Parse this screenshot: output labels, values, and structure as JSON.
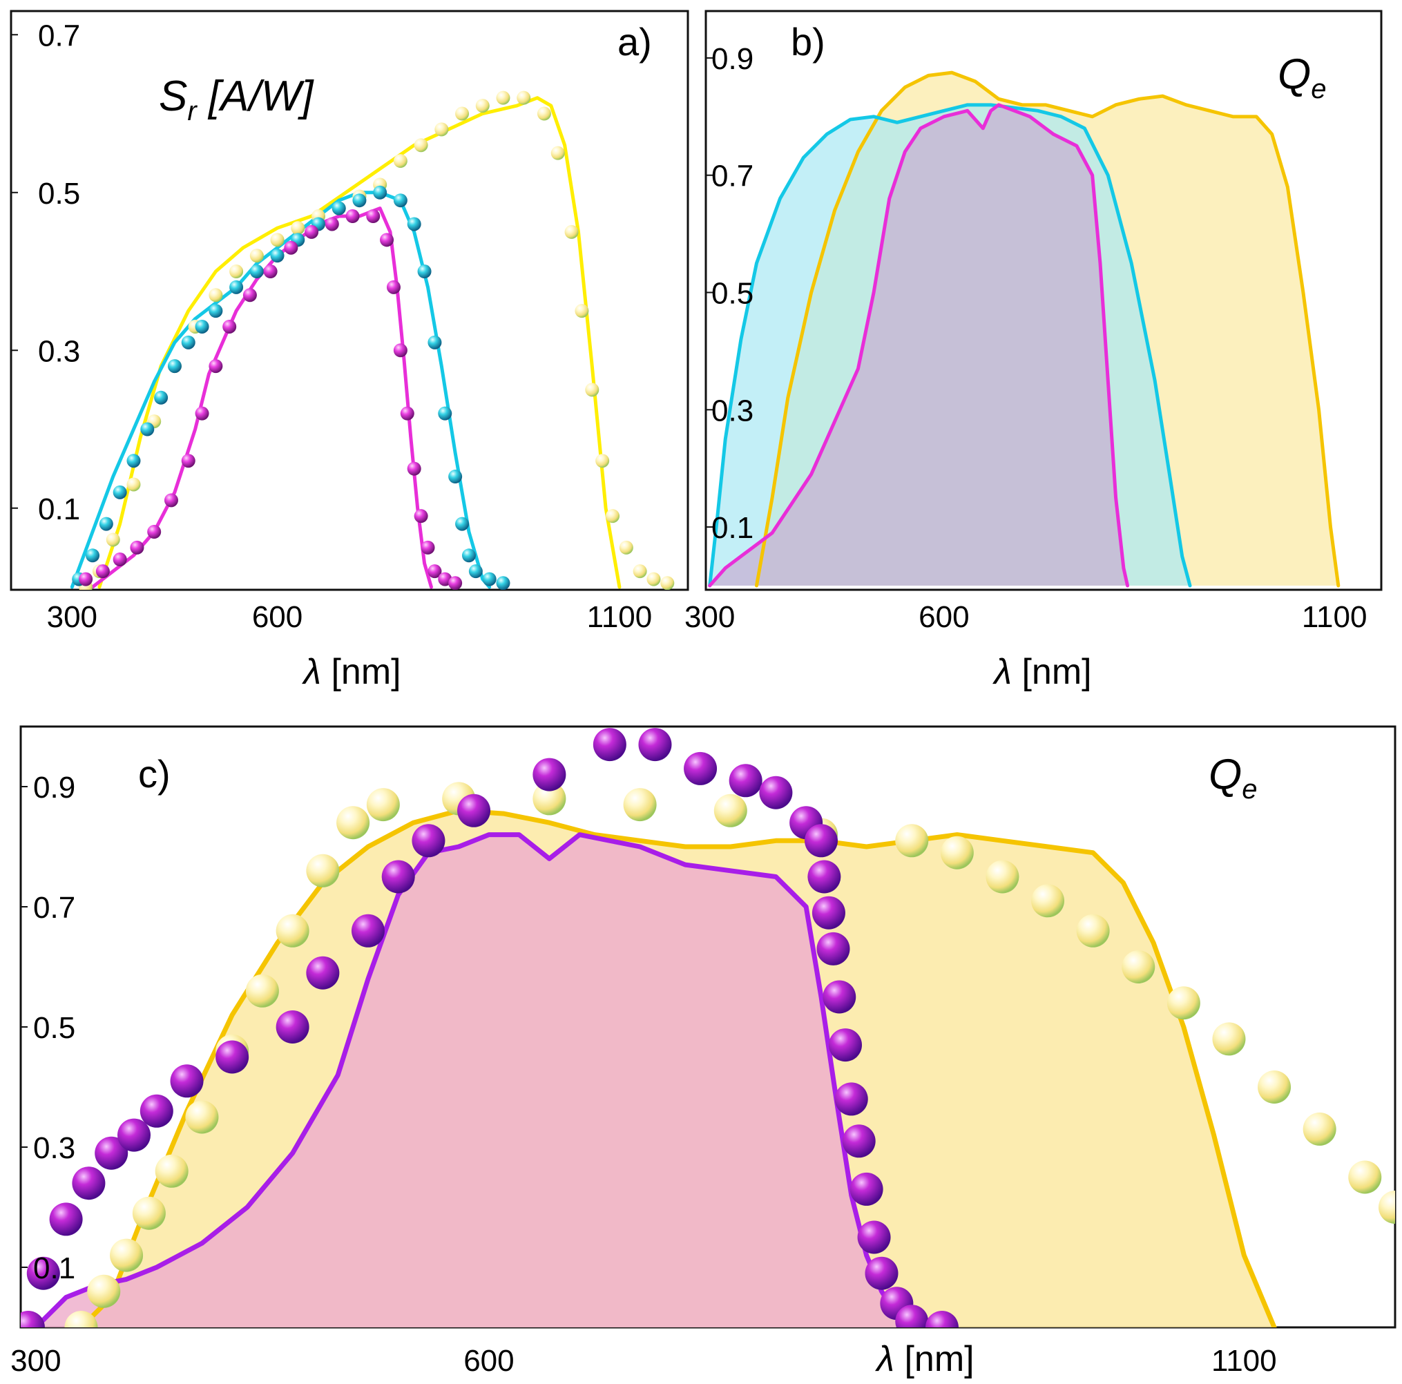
{
  "colors": {
    "yellow": "#ffee00",
    "gold": "#f5c400",
    "cyan": "#14c8e6",
    "magenta": "#e82ed8",
    "purple": "#a81ee8",
    "fill_gold": "#fbe9a2",
    "fill_cyan": "#a9e8f3",
    "fill_green": "#b4e6c6",
    "fill_purple": "#c8aed2",
    "fill_pink": "#eeb0cc"
  },
  "chart_data": [
    {
      "id": "a",
      "type": "line",
      "panel_tag": "a)",
      "title_main": "S",
      "title_sub": "r",
      "title_rest": " [A/W]",
      "xlabel_sym": "λ",
      "xlabel_unit": " [nm]",
      "xlim": [
        225,
        1200
      ],
      "ylim": [
        0,
        0.73
      ],
      "x_ticks": [
        300,
        600,
        1100
      ],
      "x_tick_labels": [
        "300",
        "600",
        "1100"
      ],
      "y_ticks": [
        0.1,
        0.3,
        0.5,
        0.7
      ],
      "y_tick_labels": [
        "0.1",
        "0.3",
        "0.5",
        "0.7"
      ],
      "minor_y_ticks": [
        0.1,
        0.3,
        0.5,
        0.7
      ],
      "series": [
        {
          "name": "yellow",
          "kind": "line",
          "color": "yellow",
          "x": [
            340,
            370,
            400,
            430,
            470,
            510,
            550,
            600,
            650,
            700,
            750,
            800,
            850,
            900,
            950,
            980,
            1000,
            1020,
            1040,
            1060,
            1080,
            1100
          ],
          "y": [
            0.0,
            0.08,
            0.19,
            0.28,
            0.35,
            0.4,
            0.43,
            0.455,
            0.47,
            0.5,
            0.53,
            0.56,
            0.58,
            0.6,
            0.61,
            0.62,
            0.61,
            0.56,
            0.45,
            0.28,
            0.1,
            0.0
          ]
        },
        {
          "name": "yellow-points",
          "kind": "points",
          "color": "yellow",
          "x": [
            320,
            340,
            360,
            390,
            420,
            450,
            480,
            510,
            540,
            570,
            600,
            630,
            660,
            690,
            720,
            750,
            780,
            810,
            840,
            870,
            900,
            930,
            960,
            990,
            1010,
            1030,
            1045,
            1060,
            1075,
            1090,
            1110,
            1130,
            1150,
            1170
          ],
          "y": [
            0.0,
            0.02,
            0.06,
            0.13,
            0.21,
            0.28,
            0.33,
            0.37,
            0.4,
            0.42,
            0.44,
            0.455,
            0.47,
            0.48,
            0.495,
            0.51,
            0.54,
            0.56,
            0.58,
            0.6,
            0.61,
            0.62,
            0.62,
            0.6,
            0.55,
            0.45,
            0.35,
            0.25,
            0.16,
            0.09,
            0.05,
            0.02,
            0.01,
            0.005
          ]
        },
        {
          "name": "cyan",
          "kind": "line",
          "color": "cyan",
          "x": [
            300,
            330,
            360,
            390,
            420,
            450,
            480,
            510,
            540,
            570,
            600,
            630,
            660,
            690,
            720,
            750,
            780,
            800,
            820,
            840,
            860,
            880,
            900,
            910
          ],
          "y": [
            0.0,
            0.07,
            0.14,
            0.2,
            0.26,
            0.31,
            0.34,
            0.36,
            0.38,
            0.41,
            0.43,
            0.45,
            0.47,
            0.49,
            0.5,
            0.5,
            0.49,
            0.45,
            0.38,
            0.28,
            0.17,
            0.07,
            0.01,
            0.0
          ]
        },
        {
          "name": "cyan-points",
          "kind": "points",
          "color": "cyan",
          "x": [
            310,
            330,
            350,
            370,
            390,
            410,
            430,
            450,
            470,
            490,
            510,
            540,
            570,
            600,
            630,
            660,
            690,
            720,
            750,
            780,
            800,
            815,
            830,
            845,
            860,
            870,
            880,
            890,
            910,
            930
          ],
          "y": [
            0.01,
            0.04,
            0.08,
            0.12,
            0.16,
            0.2,
            0.24,
            0.28,
            0.31,
            0.33,
            0.35,
            0.38,
            0.4,
            0.42,
            0.44,
            0.46,
            0.48,
            0.49,
            0.5,
            0.49,
            0.46,
            0.4,
            0.31,
            0.22,
            0.14,
            0.08,
            0.04,
            0.02,
            0.01,
            0.005
          ]
        },
        {
          "name": "magenta",
          "kind": "line",
          "color": "magenta",
          "x": [
            330,
            360,
            390,
            420,
            450,
            480,
            500,
            520,
            540,
            570,
            600,
            630,
            660,
            690,
            720,
            750,
            765,
            775,
            785,
            795,
            805,
            815,
            825
          ],
          "y": [
            0.0,
            0.02,
            0.04,
            0.07,
            0.12,
            0.2,
            0.27,
            0.31,
            0.35,
            0.39,
            0.42,
            0.44,
            0.46,
            0.47,
            0.47,
            0.48,
            0.45,
            0.38,
            0.29,
            0.19,
            0.1,
            0.03,
            0.0
          ]
        },
        {
          "name": "magenta-points",
          "kind": "points",
          "color": "magenta",
          "x": [
            320,
            345,
            370,
            395,
            420,
            445,
            470,
            490,
            510,
            530,
            560,
            590,
            620,
            650,
            680,
            710,
            740,
            760,
            770,
            780,
            790,
            800,
            810,
            820,
            830,
            845,
            860
          ],
          "y": [
            0.01,
            0.02,
            0.035,
            0.05,
            0.07,
            0.11,
            0.16,
            0.22,
            0.28,
            0.33,
            0.37,
            0.4,
            0.43,
            0.45,
            0.46,
            0.47,
            0.47,
            0.44,
            0.38,
            0.3,
            0.22,
            0.15,
            0.09,
            0.05,
            0.02,
            0.01,
            0.005
          ]
        }
      ]
    },
    {
      "id": "b",
      "type": "area",
      "panel_tag": "b)",
      "title_main": "Q",
      "title_sub": "e",
      "xlabel_sym": "λ",
      "xlabel_unit": " [nm]",
      "xlim": [
        295,
        1160
      ],
      "ylim": [
        0,
        0.98
      ],
      "x_ticks": [
        300,
        600,
        1100
      ],
      "x_tick_labels": [
        "300",
        "600",
        "1100"
      ],
      "y_ticks": [
        0.1,
        0.3,
        0.5,
        0.7,
        0.9
      ],
      "y_tick_labels": [
        "0.1",
        "0.3",
        "0.5",
        "0.7",
        "0.9"
      ],
      "series": [
        {
          "name": "gold",
          "color": "gold",
          "fill": "fill_gold",
          "x": [
            360,
            380,
            400,
            430,
            460,
            490,
            520,
            550,
            580,
            610,
            640,
            670,
            700,
            730,
            760,
            790,
            820,
            850,
            880,
            910,
            940,
            970,
            1000,
            1020,
            1040,
            1060,
            1080,
            1095,
            1105
          ],
          "y": [
            0.0,
            0.15,
            0.32,
            0.5,
            0.64,
            0.74,
            0.81,
            0.85,
            0.87,
            0.875,
            0.86,
            0.83,
            0.82,
            0.82,
            0.81,
            0.8,
            0.82,
            0.83,
            0.835,
            0.82,
            0.81,
            0.8,
            0.8,
            0.77,
            0.68,
            0.5,
            0.3,
            0.1,
            0.0
          ]
        },
        {
          "name": "cyan",
          "color": "cyan",
          "fill": "fill_cyan",
          "x": [
            300,
            310,
            320,
            340,
            360,
            390,
            420,
            450,
            480,
            510,
            540,
            570,
            600,
            630,
            660,
            690,
            720,
            750,
            780,
            810,
            840,
            870,
            890,
            905,
            915
          ],
          "y": [
            0.0,
            0.12,
            0.25,
            0.42,
            0.55,
            0.66,
            0.73,
            0.77,
            0.795,
            0.8,
            0.79,
            0.8,
            0.81,
            0.82,
            0.82,
            0.815,
            0.81,
            0.8,
            0.78,
            0.7,
            0.55,
            0.35,
            0.18,
            0.05,
            0.0
          ]
        },
        {
          "name": "magenta",
          "color": "magenta",
          "fill": "fill_purple",
          "x": [
            300,
            320,
            340,
            360,
            380,
            400,
            430,
            460,
            490,
            510,
            530,
            550,
            570,
            600,
            630,
            650,
            660,
            670,
            690,
            710,
            740,
            770,
            790,
            800,
            810,
            820,
            830,
            835
          ],
          "y": [
            0.0,
            0.03,
            0.05,
            0.07,
            0.09,
            0.13,
            0.19,
            0.28,
            0.37,
            0.5,
            0.66,
            0.74,
            0.78,
            0.8,
            0.81,
            0.78,
            0.81,
            0.82,
            0.81,
            0.8,
            0.77,
            0.75,
            0.7,
            0.55,
            0.35,
            0.15,
            0.03,
            0.0
          ]
        }
      ]
    },
    {
      "id": "c",
      "type": "area",
      "panel_tag": "c)",
      "title_main": "Q",
      "title_sub": "e",
      "xlabel_sym": "λ",
      "xlabel_unit": " [nm]",
      "xlim": [
        290,
        1200
      ],
      "ylim": [
        0,
        1.0
      ],
      "x_ticks": [
        300,
        600,
        1100
      ],
      "x_tick_labels": [
        "300",
        "600",
        "1100"
      ],
      "y_ticks": [
        0.1,
        0.3,
        0.5,
        0.7,
        0.9
      ],
      "y_tick_labels": [
        "0.1",
        "0.3",
        "0.5",
        "0.7",
        "0.9"
      ],
      "series": [
        {
          "name": "gold",
          "kind": "area",
          "color": "gold",
          "fill": "fill_gold",
          "x": [
            330,
            350,
            370,
            400,
            430,
            460,
            490,
            520,
            550,
            580,
            610,
            640,
            670,
            700,
            730,
            760,
            790,
            820,
            850,
            880,
            910,
            940,
            970,
            1000,
            1020,
            1040,
            1060,
            1080,
            1100,
            1120
          ],
          "y": [
            0.0,
            0.05,
            0.18,
            0.36,
            0.52,
            0.64,
            0.74,
            0.8,
            0.84,
            0.86,
            0.855,
            0.84,
            0.82,
            0.81,
            0.8,
            0.8,
            0.81,
            0.81,
            0.8,
            0.81,
            0.82,
            0.81,
            0.8,
            0.79,
            0.74,
            0.64,
            0.5,
            0.32,
            0.12,
            0.0
          ]
        },
        {
          "name": "purple",
          "kind": "area",
          "color": "purple",
          "fill": "fill_pink",
          "x": [
            300,
            320,
            340,
            360,
            380,
            410,
            440,
            470,
            500,
            520,
            540,
            560,
            580,
            600,
            620,
            640,
            660,
            680,
            700,
            730,
            760,
            790,
            810,
            820,
            830,
            840,
            850,
            860,
            870,
            880
          ],
          "y": [
            0.0,
            0.05,
            0.07,
            0.08,
            0.1,
            0.14,
            0.2,
            0.29,
            0.42,
            0.58,
            0.72,
            0.79,
            0.8,
            0.82,
            0.82,
            0.78,
            0.82,
            0.81,
            0.8,
            0.77,
            0.76,
            0.75,
            0.7,
            0.55,
            0.38,
            0.22,
            0.12,
            0.06,
            0.02,
            0.0
          ]
        },
        {
          "name": "gold-points",
          "kind": "points",
          "color": "gold",
          "x": [
            330,
            345,
            360,
            375,
            390,
            410,
            430,
            450,
            470,
            490,
            510,
            530,
            580,
            640,
            700,
            760,
            820,
            880,
            910,
            940,
            970,
            1000,
            1030,
            1060,
            1090,
            1120,
            1150,
            1180,
            1200
          ],
          "y": [
            0.0,
            0.06,
            0.12,
            0.19,
            0.26,
            0.35,
            0.46,
            0.56,
            0.66,
            0.76,
            0.84,
            0.87,
            0.88,
            0.88,
            0.87,
            0.86,
            0.82,
            0.81,
            0.79,
            0.75,
            0.71,
            0.66,
            0.6,
            0.54,
            0.48,
            0.4,
            0.33,
            0.25,
            0.2
          ]
        },
        {
          "name": "purple-points",
          "kind": "points",
          "color": "purple",
          "x": [
            295,
            305,
            320,
            335,
            350,
            365,
            380,
            400,
            430,
            470,
            490,
            520,
            540,
            560,
            590,
            640,
            680,
            710,
            740,
            770,
            790,
            810,
            820,
            822,
            825,
            828,
            832,
            836,
            840,
            845,
            850,
            855,
            860,
            870,
            880,
            900
          ],
          "y": [
            0.0,
            0.09,
            0.18,
            0.24,
            0.29,
            0.32,
            0.36,
            0.41,
            0.45,
            0.5,
            0.59,
            0.66,
            0.75,
            0.81,
            0.86,
            0.92,
            0.97,
            0.97,
            0.93,
            0.91,
            0.89,
            0.84,
            0.81,
            0.75,
            0.69,
            0.63,
            0.55,
            0.47,
            0.38,
            0.31,
            0.23,
            0.15,
            0.09,
            0.04,
            0.01,
            0.0
          ]
        }
      ]
    }
  ]
}
